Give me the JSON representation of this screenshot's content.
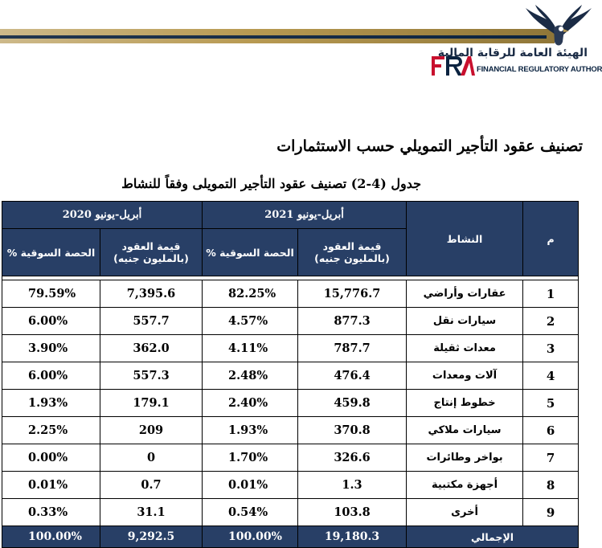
{
  "logo": {
    "arabic_name": "الهيئة العامة للرقابة المالية",
    "english_name": "FINANCIAL REGULATORY AUTHORITY",
    "mark": "FRA"
  },
  "title": "تصنيف عقود التأجير التمويلي حسب الاستثمارات",
  "table_caption": "جدول (4-2) تصنيف عقود التأجير التمويلى وفقاً للنشاط",
  "table": {
    "header": {
      "index": "م",
      "activity": "النشاط",
      "period_2021": "أبريل-يونيو 2021",
      "period_2020": "أبريل-يونيو 2020",
      "contracts_value_line1": "قيمة العقود",
      "contracts_value_line2": "(بالمليون جنيه)",
      "market_share_line1": "الحصة السوقية",
      "market_share_line2": "%"
    },
    "rows": [
      {
        "idx": "1",
        "activity": "عقارات وأراضي",
        "v2021": "15,776.7",
        "s2021": "82.25%",
        "v2020": "7,395.6",
        "s2020": "79.59%"
      },
      {
        "idx": "2",
        "activity": "سيارات نقل",
        "v2021": "877.3",
        "s2021": "4.57%",
        "v2020": "557.7",
        "s2020": "6.00%"
      },
      {
        "idx": "3",
        "activity": "معدات ثقيلة",
        "v2021": "787.7",
        "s2021": "4.11%",
        "v2020": "362.0",
        "s2020": "3.90%"
      },
      {
        "idx": "4",
        "activity": "آلات ومعدات",
        "v2021": "476.4",
        "s2021": "2.48%",
        "v2020": "557.3",
        "s2020": "6.00%"
      },
      {
        "idx": "5",
        "activity": "خطوط إنتاج",
        "v2021": "459.8",
        "s2021": "2.40%",
        "v2020": "179.1",
        "s2020": "1.93%"
      },
      {
        "idx": "6",
        "activity": "سيارات ملاكي",
        "v2021": "370.8",
        "s2021": "1.93%",
        "v2020": "209",
        "s2020": "2.25%"
      },
      {
        "idx": "7",
        "activity": "بواخر وطائرات",
        "v2021": "326.6",
        "s2021": "1.70%",
        "v2020": "0",
        "s2020": "0.00%"
      },
      {
        "idx": "8",
        "activity": "أجهزة مكتبية",
        "v2021": "1.3",
        "s2021": "0.01%",
        "v2020": "0.7",
        "s2020": "0.01%"
      },
      {
        "idx": "9",
        "activity": "أخرى",
        "v2021": "103.8",
        "s2021": "0.54%",
        "v2020": "31.1",
        "s2020": "0.33%"
      }
    ],
    "total": {
      "label": "الإجمالي",
      "v2021": "19,180.3",
      "s2021": "100.00%",
      "v2020": "9,292.5",
      "s2020": "100.00%"
    }
  },
  "colors": {
    "header_bg": "#283f66",
    "header_text": "#ffffff",
    "band_gold": "#b89a52",
    "band_navy": "#0b2340",
    "logo_red": "#c8102e"
  }
}
